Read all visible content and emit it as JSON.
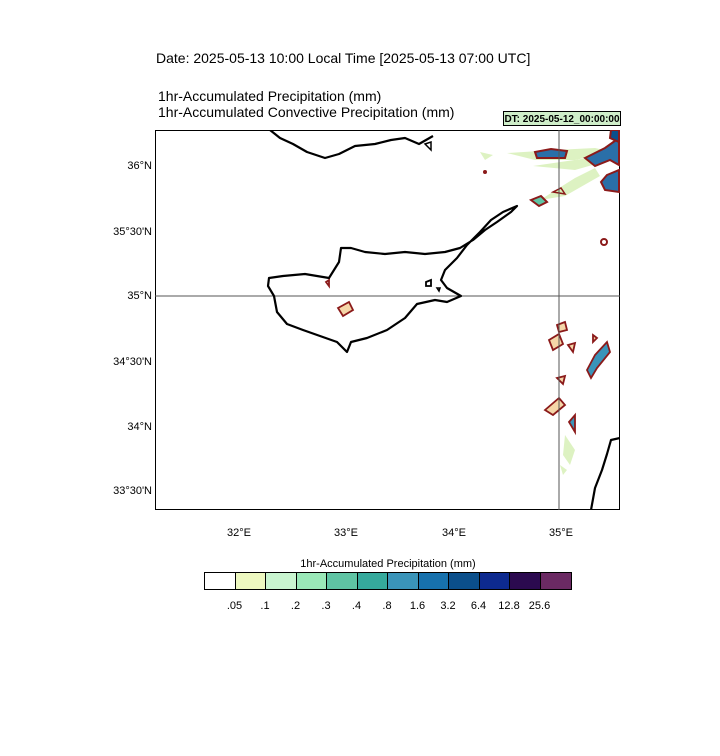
{
  "title": "Date: 2025-05-13  10:00 Local Time [2025-05-13  07:00 UTC]",
  "subtitles": [
    "1hr-Accumulated Precipitation   (mm)",
    "1hr-Accumulated Convective Precipitation   (mm)"
  ],
  "dt_badge": "DT: 2025-05-12_00:00:00",
  "map": {
    "lat_labels": [
      "36°N",
      "35°30'N",
      "35°N",
      "34°30'N",
      "34°N",
      "33°30'N"
    ],
    "lon_labels": [
      "32°E",
      "33°E",
      "34°E",
      "35°E"
    ],
    "reference_lines": {
      "lat": "35°N",
      "lon": "35°E"
    },
    "coastline_color": "#000000",
    "convective_contour_color": "#8b1a1a"
  },
  "legend": {
    "title": "1hr-Accumulated Precipitation  (mm)",
    "colors": [
      "#ffffff",
      "#edf8c0",
      "#c9f5d0",
      "#9ae8b8",
      "#5fc4a4",
      "#35a99c",
      "#3a94b9",
      "#1771ad",
      "#0b4f8b",
      "#0d2a8f",
      "#2b0a4f",
      "#6b2a63"
    ],
    "ticks": [
      ".05",
      ".1",
      ".2",
      ".3",
      ".4",
      ".8",
      "1.6",
      "3.2",
      "6.4",
      "12.8",
      "25.6"
    ]
  }
}
